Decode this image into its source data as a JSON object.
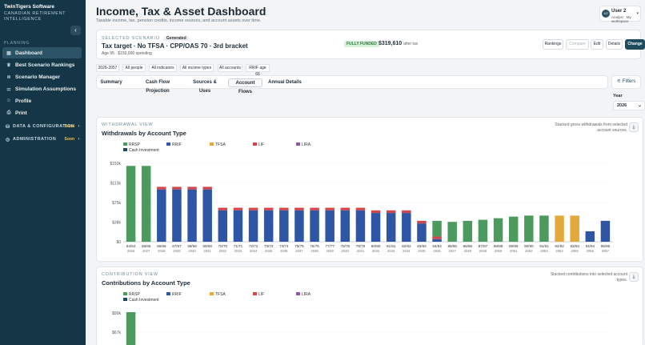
{
  "sidebar": {
    "brand": "TwinTigers Software",
    "subtitle": "CANADIAN RETIREMENT INTELLIGENCE",
    "section_label": "PLANNING",
    "collapse_glyph": "‹",
    "items": [
      {
        "label": "Dashboard",
        "icon": "grid-icon",
        "glyph": "▦"
      },
      {
        "label": "Best Scenario Rankings",
        "icon": "trophy-icon",
        "glyph": "♛"
      },
      {
        "label": "Scenario Manager",
        "icon": "layers-icon",
        "glyph": "≋"
      },
      {
        "label": "Simulation Assumptions",
        "icon": "sliders-icon",
        "glyph": "⚌"
      },
      {
        "label": "Profile",
        "icon": "user-icon",
        "glyph": "☺"
      },
      {
        "label": "Print",
        "icon": "printer-icon",
        "glyph": "⎙"
      }
    ],
    "groups": [
      {
        "label": "DATA & CONFIGURATION",
        "soon": "Soon",
        "glyph": "⛁"
      },
      {
        "label": "ADMINISTRATION",
        "soon": "Soon",
        "glyph": "◎"
      }
    ]
  },
  "header": {
    "title": "Income, Tax & Asset Dashboard",
    "subtitle": "Taxable income, tax, pension credits, income sources, and account assets over time."
  },
  "user": {
    "initials": "U2",
    "name": "User 2",
    "workspace": "Analyst · My workspace"
  },
  "scenario": {
    "label": "SELECTED SCENARIO",
    "badge": "Generated",
    "title": "Tax target · No TFSA · CPP/OAS 70 · 3rd bracket",
    "age": "Age 95 · $150,000 spending",
    "status": "FULLY FUNDED",
    "balance": "$319,610",
    "balance_note": "after tax",
    "buttons": [
      "Rankings",
      "Compare",
      "Edit",
      "Details",
      "Change"
    ]
  },
  "chips": [
    "2026-2057",
    "All people",
    "All indicators",
    "All income types",
    "All accounts",
    "RRIF age 66"
  ],
  "tabs": [
    "Summary",
    "Cash Flow Projection",
    "Sources & Uses",
    "Account Flows",
    "Annual Details"
  ],
  "filters_label": "Filters",
  "year": {
    "label": "Year",
    "value": "2026"
  },
  "colors": {
    "RRSP": "#4d9a5f",
    "RRIF": "#2e56a4",
    "TFSA": "#e3a93a",
    "LIF": "#d0464a",
    "LIRA": "#8a5aa5",
    "Cash Investment": "#1e4b5e"
  },
  "withdrawal_view": {
    "label": "WITHDRAWAL VIEW",
    "title": "Withdrawals by Account Type",
    "note": "Stacked gross withdrawals from selected account sources."
  },
  "contribution_view": {
    "label": "CONTRIBUTION VIEW",
    "title": "Contributions by Account Type",
    "note": "Stacked contributions into selected account types.",
    "y_ticks": [
      "$90k",
      "$67k"
    ]
  },
  "chart_data": [
    {
      "type": "bar",
      "title": "Withdrawals by Account Type",
      "stacked": true,
      "legend": [
        "RRSP",
        "RRIF",
        "TFSA",
        "LIF",
        "LIRA",
        "Cash Investment"
      ],
      "y_ticks": [
        "$0",
        "$38k",
        "$75k",
        "$113k",
        "$150k"
      ],
      "ylim": [
        0,
        150
      ],
      "categories": [
        "64/64",
        "65/65",
        "66/66",
        "67/67",
        "68/68",
        "69/69",
        "70/70",
        "71/71",
        "72/72",
        "73/73",
        "74/74",
        "75/75",
        "76/76",
        "77/77",
        "78/78",
        "79/79",
        "80/80",
        "81/81",
        "82/82",
        "83/83",
        "84/84",
        "85/85",
        "86/86",
        "87/87",
        "88/88",
        "89/89",
        "90/90",
        "91/91",
        "92/92",
        "93/93",
        "94/94",
        "95/95"
      ],
      "years": [
        "2026",
        "2027",
        "2028",
        "2029",
        "2030",
        "2031",
        "2032",
        "2033",
        "2034",
        "2035",
        "2036",
        "2037",
        "2038",
        "2039",
        "2040",
        "2041",
        "2042",
        "2043",
        "2044",
        "2045",
        "2046",
        "2047",
        "2048",
        "2049",
        "2050",
        "2051",
        "2052",
        "2053",
        "2054",
        "2055",
        "2056",
        "2057"
      ],
      "series": [
        {
          "name": "RRSP",
          "values": [
            145,
            145,
            0,
            0,
            0,
            0,
            0,
            0,
            0,
            0,
            0,
            0,
            0,
            0,
            0,
            0,
            0,
            0,
            0,
            0,
            30,
            38,
            40,
            42,
            45,
            48,
            50,
            50,
            0,
            0,
            0,
            0
          ]
        },
        {
          "name": "RRIF",
          "values": [
            0,
            0,
            100,
            100,
            100,
            100,
            60,
            60,
            60,
            60,
            60,
            60,
            60,
            60,
            60,
            60,
            55,
            55,
            55,
            35,
            5,
            0,
            0,
            0,
            0,
            0,
            0,
            0,
            0,
            0,
            20,
            40
          ]
        },
        {
          "name": "TFSA",
          "values": [
            0,
            0,
            0,
            0,
            0,
            0,
            0,
            0,
            0,
            0,
            0,
            0,
            0,
            0,
            0,
            0,
            0,
            0,
            0,
            0,
            0,
            0,
            0,
            0,
            0,
            0,
            0,
            0,
            50,
            50,
            0,
            0
          ]
        },
        {
          "name": "LIF",
          "values": [
            0,
            0,
            5,
            5,
            5,
            5,
            5,
            5,
            5,
            5,
            5,
            5,
            5,
            5,
            5,
            5,
            5,
            5,
            5,
            5,
            5,
            0,
            0,
            0,
            0,
            0,
            0,
            0,
            0,
            0,
            0,
            0
          ]
        },
        {
          "name": "LIRA",
          "values": [
            0,
            0,
            0,
            0,
            0,
            0,
            0,
            0,
            0,
            0,
            0,
            0,
            0,
            0,
            0,
            0,
            0,
            0,
            0,
            0,
            0,
            0,
            0,
            0,
            0,
            0,
            0,
            0,
            0,
            0,
            0,
            0
          ]
        },
        {
          "name": "Cash Investment",
          "values": [
            0,
            0,
            0,
            0,
            0,
            0,
            0,
            0,
            0,
            0,
            0,
            0,
            0,
            0,
            0,
            0,
            0,
            0,
            0,
            0,
            0,
            0,
            0,
            0,
            0,
            0,
            0,
            0,
            0,
            0,
            0,
            0
          ]
        }
      ]
    },
    {
      "type": "bar",
      "title": "Contributions by Account Type",
      "stacked": true,
      "legend": [
        "RRSP",
        "RRIF",
        "TFSA",
        "LIF",
        "LIRA",
        "Cash Investment"
      ],
      "series": [
        {
          "name": "RRSP",
          "values": [
            100
          ]
        }
      ]
    }
  ]
}
